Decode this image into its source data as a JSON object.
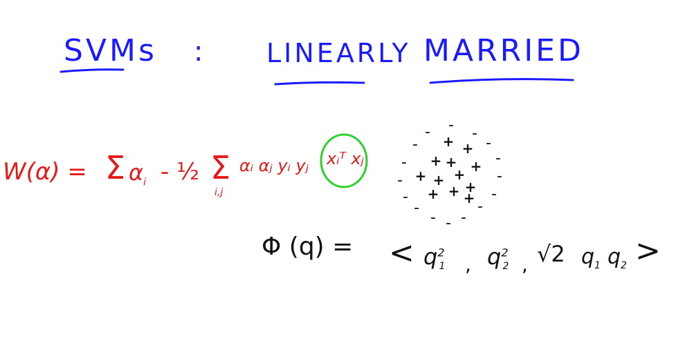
{
  "title": {
    "part1": "SVMs",
    "colon": ":",
    "part2": "LINEARLY",
    "part3": "MARRIED"
  },
  "equation_w": {
    "lhs": "W(α) =",
    "sum1": "Σ",
    "term1": "α",
    "term1_sub": "i",
    "minus_half": "- ½",
    "sum2": "Σ",
    "sum2_sub": "i,j",
    "term2": "αᵢ αⱼ yᵢ yⱼ",
    "highlight": "xᵢᵀ xⱼ"
  },
  "phi_equation": {
    "lhs": "Φ (q) =",
    "open": "<",
    "c1": "q",
    "c1_sup": "2",
    "c1_sub": "1",
    "comma1": ",",
    "c2": "q",
    "c2_sup": "2",
    "c2_sub": "2",
    "comma2": ",",
    "sqrt2": "√2",
    "c3": "q",
    "c3_sub": "1",
    "c4": "q",
    "c4_sub": "2",
    "close": ">"
  },
  "scatter": {
    "minus_symbol": "-",
    "plus_symbol": "+"
  },
  "colors": {
    "title": "#1a1aff",
    "equation": "#e41a1a",
    "highlight_circle": "#2bd12b",
    "ink": "#111111"
  }
}
